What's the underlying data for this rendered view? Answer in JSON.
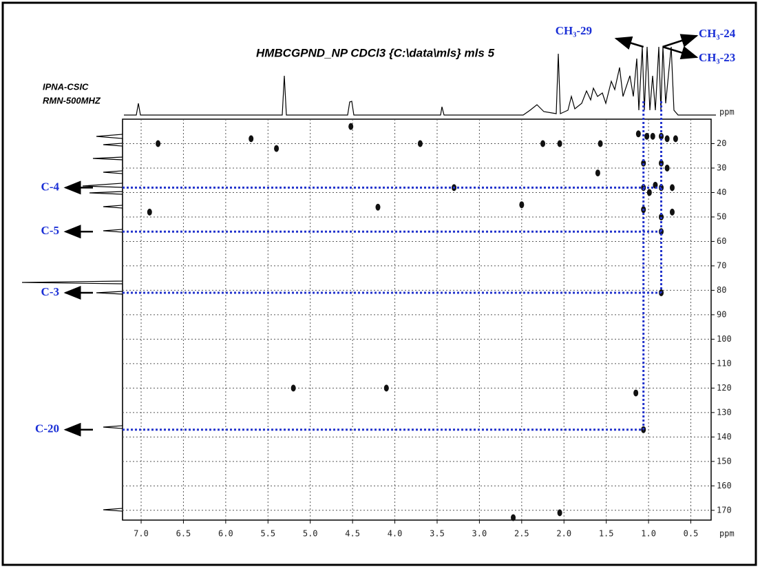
{
  "chart_data": {
    "type": "scatter",
    "title": "HMBCGPND_NP CDCl3 {C:\\data\\mls} mls 5",
    "notes": [
      "IPNA-CSIC",
      "RMN-500MHZ"
    ],
    "xlabel": "ppm",
    "ylabel": "ppm",
    "xlim": [
      7.22,
      0.26
    ],
    "ylim": [
      10,
      174
    ],
    "xticks": [
      {
        "value": 7,
        "label": "7.0"
      },
      6.5,
      {
        "value": 6,
        "label": "6.0"
      },
      5.5,
      {
        "value": 5,
        "label": "5.0"
      },
      4.5,
      {
        "value": 4,
        "label": "4.0"
      },
      3.5,
      {
        "value": 3,
        "label": "3.0"
      },
      2.5,
      {
        "value": 2,
        "label": "2.0"
      },
      1.5,
      {
        "value": 1,
        "label": "1.0"
      },
      0.5
    ],
    "yticks": [
      20,
      30,
      40,
      50,
      60,
      70,
      80,
      90,
      100,
      110,
      120,
      130,
      140,
      150,
      160,
      170
    ],
    "grid": true,
    "color": "#111111",
    "x": [
      1.06,
      0.85,
      0.85,
      0.85,
      1.06,
      0.99,
      1.06,
      0.85,
      0.72,
      0.72,
      0.78,
      0.85,
      1.06,
      0.78,
      0.85,
      0.95,
      1.02,
      1.12,
      0.68,
      0.92,
      2.05,
      2.25,
      2.05,
      1.6,
      6.8,
      5.7,
      5.4,
      4.52,
      3.7,
      3.3,
      4.2,
      2.5,
      6.9,
      4.1,
      5.2,
      1.15,
      2.6,
      1.57
    ],
    "values": [
      137,
      81,
      56,
      38,
      38,
      40,
      47,
      50,
      38,
      48,
      30,
      28,
      28,
      18,
      17,
      17,
      17,
      16,
      18,
      37,
      171,
      20,
      20,
      32,
      20,
      18,
      22,
      13,
      20,
      38,
      46,
      45,
      48,
      120,
      120,
      122,
      173,
      20
    ],
    "carbon_labels": [
      {
        "text": "C-4",
        "x": 0.85,
        "y": 38
      },
      {
        "text": "C-5",
        "x": 0.85,
        "y": 56
      },
      {
        "text": "C-3",
        "x": 0.85,
        "y": 81
      },
      {
        "text": "C-20",
        "x": 1.06,
        "y": 137
      }
    ],
    "proton_labels": [
      {
        "text": "CH₃-29",
        "x": 1.06
      },
      {
        "text": "CH₃-24",
        "x": 0.85
      },
      {
        "text": "CH₃-23",
        "x": 0.85
      }
    ]
  }
}
